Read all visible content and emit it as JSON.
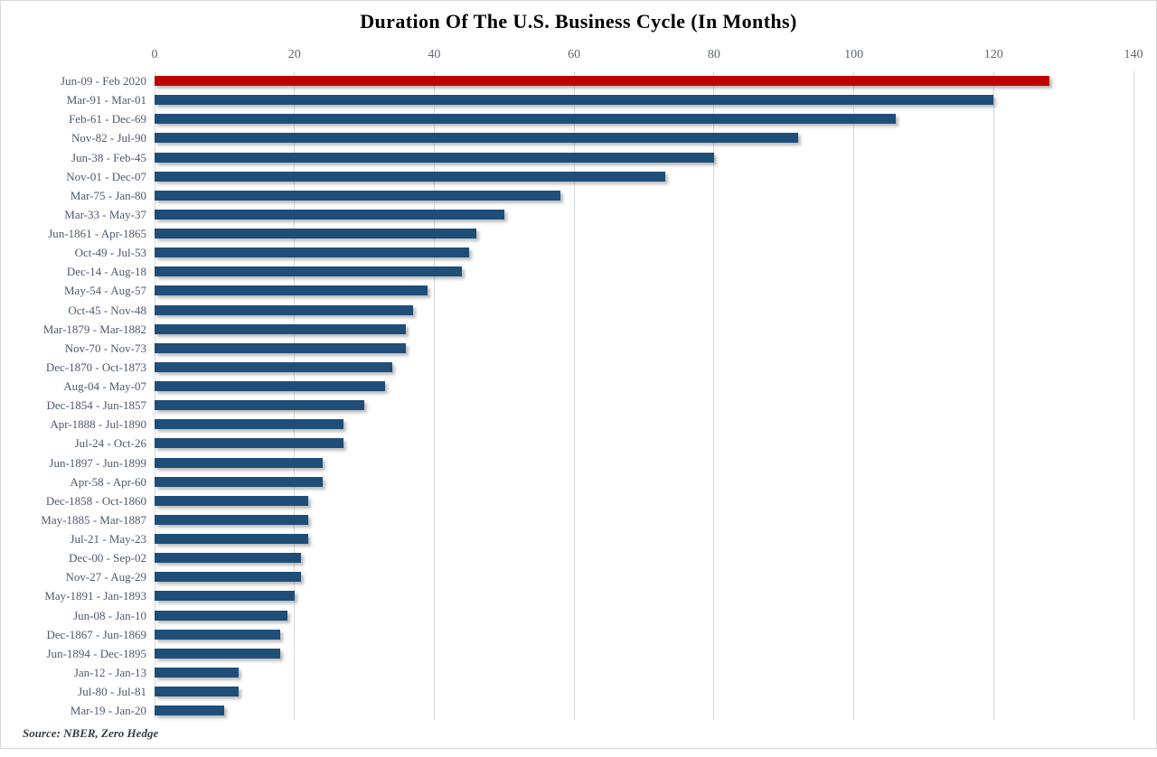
{
  "title": "Duration Of The U.S. Business Cycle (In Months)",
  "source_note": "Source: NBER, Zero Hedge",
  "colors": {
    "bar": "#1F4E79",
    "highlight": "#C00000",
    "gridline": "#d9d9d9",
    "category_label": "#4e5b6e",
    "tick_label": "#5f6673",
    "title": "#000000"
  },
  "chart_data": {
    "type": "bar",
    "orientation": "horizontal",
    "title": "Duration Of The U.S. Business Cycle (In Months)",
    "xlabel": "",
    "ylabel": "",
    "xlim": [
      0,
      140
    ],
    "x_ticks": [
      0,
      20,
      40,
      60,
      80,
      100,
      120,
      140
    ],
    "axis_position": "top",
    "grid": true,
    "legend": "none",
    "highlight_index": 0,
    "categories": [
      "Jun-09 - Feb 2020",
      "Mar-91 - Mar-01",
      "Feb-61 - Dec-69",
      "Nov-82 - Jul-90",
      "Jun-38 - Feb-45",
      "Nov-01 - Dec-07",
      "Mar-75 - Jan-80",
      "Mar-33 - May-37",
      "Jun-1861 - Apr-1865",
      "Oct-49 - Jul-53",
      "Dec-14 - Aug-18",
      "May-54 - Aug-57",
      "Oct-45 - Nov-48",
      "Mar-1879 - Mar-1882",
      "Nov-70 - Nov-73",
      "Dec-1870 - Oct-1873",
      "Aug-04 - May-07",
      "Dec-1854 - Jun-1857",
      "Apr-1888 - Jul-1890",
      "Jul-24 - Oct-26",
      "Jun-1897 - Jun-1899",
      "Apr-58 - Apr-60",
      "Dec-1858 - Oct-1860",
      "May-1885 - Mar-1887",
      "Jul-21 - May-23",
      "Dec-00 - Sep-02",
      "Nov-27 - Aug-29",
      "May-1891 - Jan-1893",
      "Jun-08 - Jan-10",
      "Dec-1867 - Jun-1869",
      "Jun-1894 - Dec-1895",
      "Jan-12 - Jan-13",
      "Jul-80 - Jul-81",
      "Mar-19 - Jan-20"
    ],
    "values": [
      128,
      120,
      106,
      92,
      80,
      73,
      58,
      50,
      46,
      45,
      44,
      39,
      37,
      36,
      36,
      34,
      33,
      30,
      27,
      27,
      24,
      24,
      22,
      22,
      22,
      21,
      21,
      20,
      19,
      18,
      18,
      12,
      12,
      10
    ]
  }
}
